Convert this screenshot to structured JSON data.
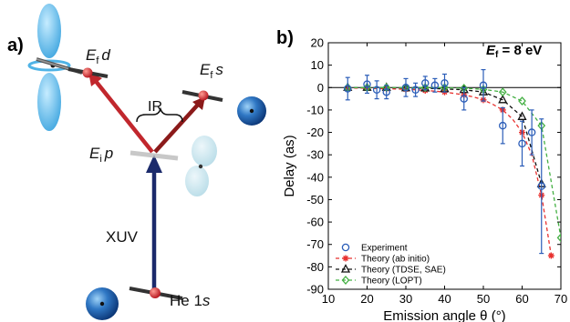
{
  "panel_a": {
    "label": "a)",
    "labels": {
      "ef_d_E": "E",
      "ef_d_sub": "f",
      "ef_d_rest": "d",
      "ef_s_E": "E",
      "ef_s_sub": "f",
      "ef_s_rest": "s",
      "ei_p_E": "E",
      "ei_p_sub": "i",
      "ei_p_rest": "p",
      "ir": "IR",
      "xuv": "XUV",
      "he": "He 1",
      "he_s": "s"
    },
    "colors": {
      "xuv_arrow": "#1b2a6b",
      "ir_arrow_d": "#c1272d",
      "ir_arrow_s": "#8b1a1a",
      "orbital": "#4fb3e6",
      "orbital_faded": "#b9dde9",
      "atom": "#1f63b5"
    }
  },
  "panel_b": {
    "label": "b)",
    "annotation": {
      "E": "E",
      "sub": "f",
      "rest": " = 8 eV"
    },
    "chart_data": {
      "type": "scatter",
      "xlabel": "Emission angle θ (°)",
      "ylabel": "Delay (as)",
      "xlim": [
        10,
        70
      ],
      "ylim": [
        -90,
        20
      ],
      "xticks": [
        10,
        20,
        30,
        40,
        50,
        60,
        70
      ],
      "yticks": [
        20,
        10,
        0,
        -10,
        -20,
        -30,
        -40,
        -50,
        -60,
        -70,
        -80,
        -90
      ],
      "legend_position": "bottom-left",
      "grid": false,
      "series": [
        {
          "name": "Experiment",
          "kind": "points-errorbars",
          "color": "#2b5db8",
          "marker": "circle",
          "x": [
            15,
            20,
            22.5,
            25,
            30,
            32.5,
            35,
            37.5,
            40,
            45,
            50,
            55,
            60,
            62.5,
            65
          ],
          "y": [
            -0.5,
            1.5,
            -1,
            -2,
            0,
            -1,
            2,
            1,
            2,
            -5,
            1,
            -17,
            -25,
            -20,
            -44
          ],
          "err": [
            5,
            4,
            4,
            3,
            4,
            3,
            3,
            3,
            4,
            5,
            7,
            8,
            10,
            10,
            30
          ]
        },
        {
          "name": "Theory (ab initio)",
          "kind": "line-markers",
          "color": "#e8312f",
          "marker": "asterisk",
          "x": [
            15,
            17.5,
            20,
            22.5,
            25,
            27.5,
            30,
            32.5,
            35,
            37.5,
            40,
            42.5,
            45,
            47.5,
            50,
            52.5,
            55,
            57.5,
            60,
            62.5,
            65,
            67.5
          ],
          "y": [
            -0.2,
            -0.2,
            -0.3,
            -0.4,
            -0.5,
            -0.6,
            -0.8,
            -1.0,
            -1.3,
            -1.6,
            -2.0,
            -2.6,
            -3.3,
            -4.2,
            -5.5,
            -7.5,
            -10,
            -14,
            -20,
            -30,
            -48,
            -75
          ]
        },
        {
          "name": "Theory (TDSE, SAE)",
          "kind": "line-markers",
          "color": "#111111",
          "marker": "triangle",
          "x": [
            15,
            20,
            25,
            30,
            35,
            40,
            45,
            50,
            55,
            60,
            65
          ],
          "y": [
            0,
            0,
            0,
            -0.2,
            -0.3,
            -0.6,
            -1,
            -2,
            -5.5,
            -13,
            -43
          ]
        },
        {
          "name": "Theory (LOPT)",
          "kind": "line-markers",
          "color": "#44b043",
          "marker": "diamond",
          "x": [
            15,
            20,
            25,
            30,
            35,
            40,
            45,
            50,
            55,
            60,
            65,
            70
          ],
          "y": [
            0,
            0,
            0,
            0,
            0,
            0,
            -0.3,
            -0.8,
            -2,
            -6,
            -17,
            -67
          ]
        }
      ]
    }
  }
}
